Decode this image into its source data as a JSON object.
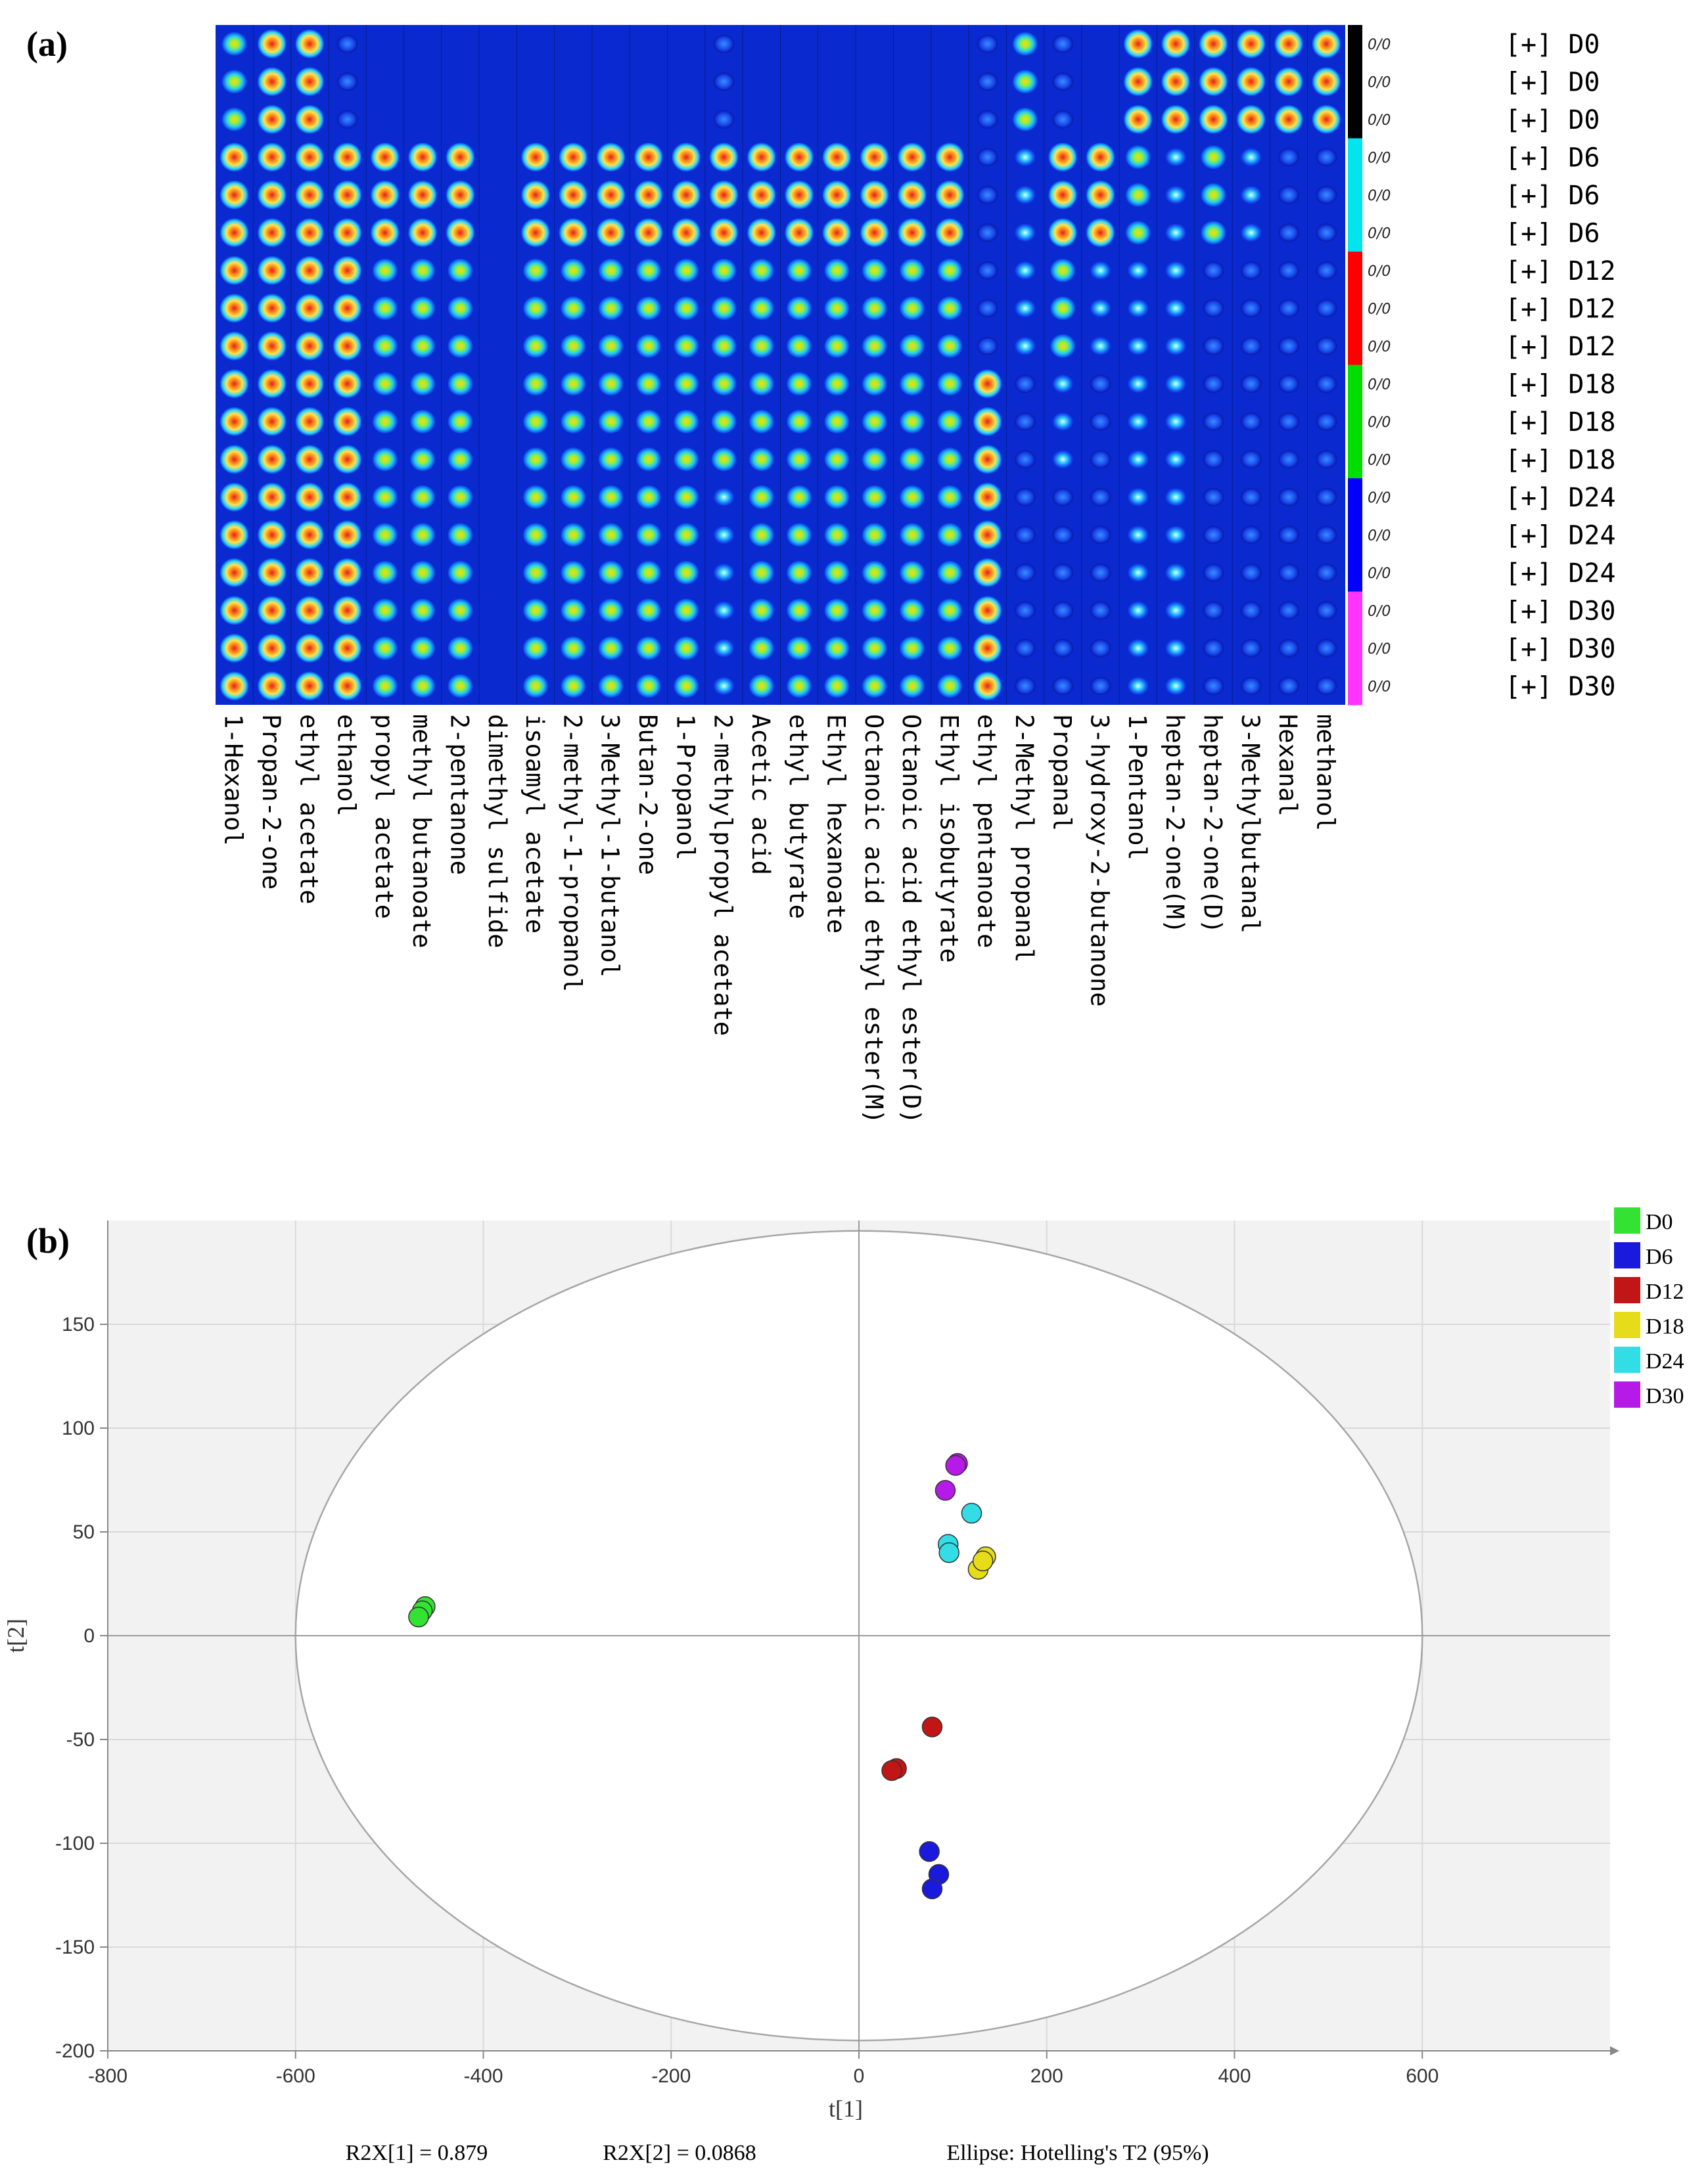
{
  "panel_a": {
    "label": "(a)",
    "ratio_label": "0/0",
    "group_prefix": "[+]",
    "compounds": [
      "1-Hexanol",
      "Propan-2-one",
      "ethyl acetate",
      "ethanol",
      "propyl acetate",
      "methyl butanoate",
      "2-pentanone",
      "dimethyl sulfide",
      "isoamyl acetate",
      "2-methyl-1-propanol",
      "3-Methyl-1-butanol",
      "Butan-2-one",
      "1-Propanol",
      "2-methylpropyl acetate",
      "Acetic acid",
      "ethyl butyrate",
      "Ethyl hexanoate",
      "Octanoic acid ethyl ester(M)",
      "Octanoic acid ethyl ester(D)",
      "Ethyl isobutyrate",
      "ethyl pentanoate",
      "2-Methyl propanal",
      "Propanal",
      "3-hydroxy-2-butanone",
      "1-Pentanol",
      "heptan-2-one(M)",
      "heptan-2-one(D)",
      "3-Methylbutanal",
      "Hexanal",
      "methanol"
    ],
    "rows": [
      "D0",
      "D0",
      "D0",
      "D6",
      "D6",
      "D6",
      "D12",
      "D12",
      "D12",
      "D18",
      "D18",
      "D18",
      "D24",
      "D24",
      "D24",
      "D30",
      "D30",
      "D30"
    ],
    "group_colors": {
      "D0": "#000000",
      "D6": "#00e5ee",
      "D12": "#ff0000",
      "D18": "#00dd00",
      "D24": "#0000ff",
      "D30": "#ff33ff"
    }
  },
  "chart_data": {
    "type": "scatter",
    "label": "(b)",
    "xlabel": "t[1]",
    "ylabel": "t[2]",
    "xlim": [
      -800,
      800
    ],
    "ylim": [
      -200,
      200
    ],
    "xticks": [
      -800,
      -600,
      -400,
      -200,
      0,
      200,
      400,
      600
    ],
    "yticks": [
      -200,
      -150,
      -100,
      -50,
      0,
      50,
      100,
      150
    ],
    "ellipse": {
      "a": 600,
      "b": 195
    },
    "footer": [
      "R2X[1] = 0.879",
      "R2X[2] = 0.0868",
      "Ellipse: Hotelling's T2 (95%)"
    ],
    "series": [
      {
        "name": "D0",
        "color": "#33e233",
        "points": [
          [
            -462,
            14
          ],
          [
            -465,
            12
          ],
          [
            -469,
            9
          ]
        ]
      },
      {
        "name": "D6",
        "color": "#1a1adc",
        "points": [
          [
            75,
            -104
          ],
          [
            85,
            -115
          ],
          [
            78,
            -122
          ]
        ]
      },
      {
        "name": "D12",
        "color": "#c21515",
        "points": [
          [
            78,
            -44
          ],
          [
            40,
            -64
          ],
          [
            35,
            -65
          ]
        ]
      },
      {
        "name": "D18",
        "color": "#e6dc1a",
        "points": [
          [
            135,
            38
          ],
          [
            127,
            32
          ],
          [
            132,
            36
          ]
        ]
      },
      {
        "name": "D24",
        "color": "#33dde6",
        "points": [
          [
            120,
            59
          ],
          [
            95,
            44
          ],
          [
            96,
            40
          ]
        ]
      },
      {
        "name": "D30",
        "color": "#b51ae6",
        "points": [
          [
            105,
            83
          ],
          [
            92,
            70
          ],
          [
            103,
            82
          ]
        ]
      }
    ]
  }
}
